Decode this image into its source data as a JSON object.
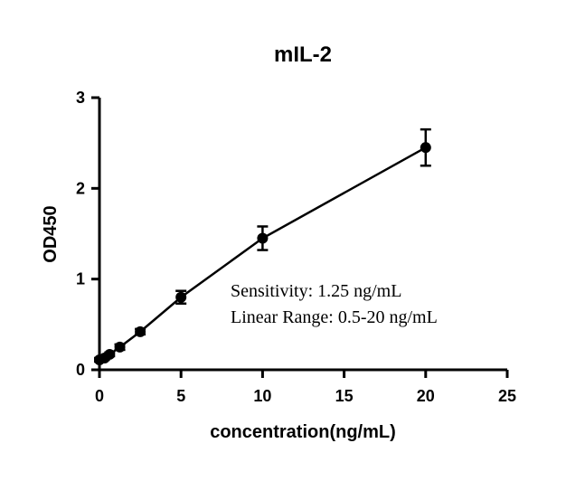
{
  "chart_data": {
    "type": "scatter",
    "title": "mIL-2",
    "xlabel": "concentration(ng/mL)",
    "ylabel": "OD450",
    "xlim": [
      0,
      25
    ],
    "ylim": [
      0,
      3
    ],
    "xticks": [
      "0",
      "5",
      "10",
      "15",
      "20",
      "25"
    ],
    "yticks": [
      "0",
      "1",
      "2",
      "3"
    ],
    "grid": false,
    "series": [
      {
        "x": [
          0.0,
          0.3125,
          0.625,
          1.25,
          2.5,
          5,
          10,
          20
        ],
        "y": [
          0.11,
          0.13,
          0.17,
          0.25,
          0.42,
          0.8,
          1.45,
          2.45
        ],
        "err": [
          0.02,
          0.02,
          0.02,
          0.03,
          0.03,
          0.07,
          0.13,
          0.2
        ]
      }
    ],
    "annotations": [
      "Sensitivity: 1.25 ng/mL",
      "Linear Range: 0.5-20 ng/mL"
    ]
  }
}
